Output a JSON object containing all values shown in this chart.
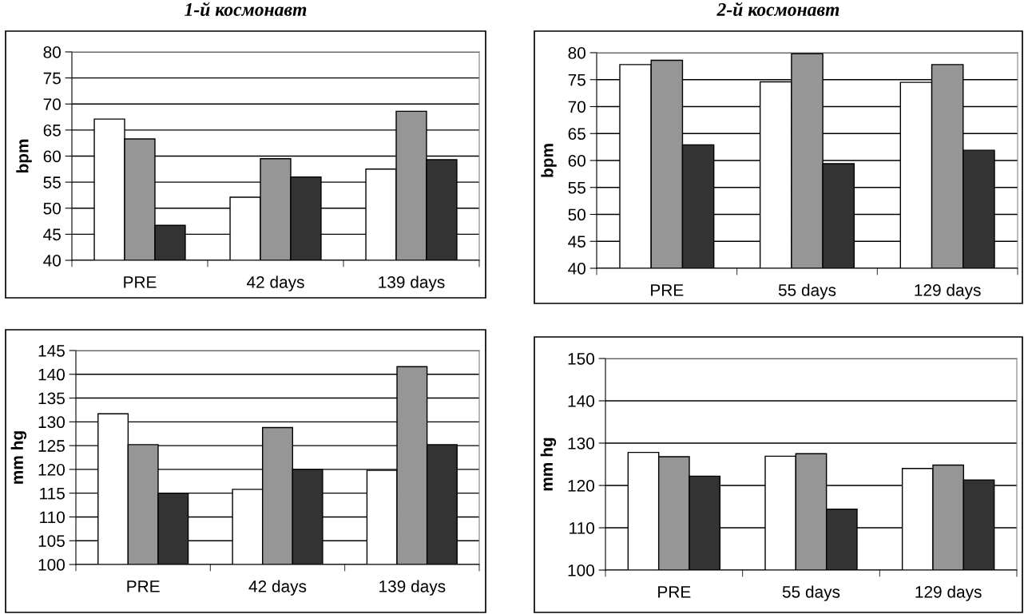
{
  "chart_data": [
    {
      "type": "bar",
      "title": "1-й космонавт",
      "ylabel": "bpm",
      "categories": [
        "PRE",
        "42 days",
        "139 days"
      ],
      "ylim": [
        40,
        80
      ],
      "yticks": [
        40,
        45,
        50,
        55,
        60,
        65,
        70,
        75,
        80
      ],
      "grid": "y",
      "series": [
        {
          "color": "#ffffff",
          "values": [
            67.1,
            52.1,
            57.5
          ]
        },
        {
          "color": "#969696",
          "values": [
            63.3,
            59.5,
            68.6
          ]
        },
        {
          "color": "#333333",
          "values": [
            46.7,
            56.0,
            59.3
          ]
        }
      ]
    },
    {
      "type": "bar",
      "title": "2-й космонавт",
      "ylabel": "bpm",
      "categories": [
        "PRE",
        "55 days",
        "129 days"
      ],
      "ylim": [
        40,
        80
      ],
      "yticks": [
        40,
        45,
        50,
        55,
        60,
        65,
        70,
        75,
        80
      ],
      "grid": "y",
      "series": [
        {
          "color": "#ffffff",
          "values": [
            77.8,
            74.6,
            74.5
          ]
        },
        {
          "color": "#969696",
          "values": [
            78.6,
            79.8,
            77.8
          ]
        },
        {
          "color": "#333333",
          "values": [
            62.9,
            59.4,
            61.9
          ]
        }
      ]
    },
    {
      "type": "bar",
      "ylabel": "mm hg",
      "categories": [
        "PRE",
        "42 days",
        "139 days"
      ],
      "ylim": [
        100,
        145
      ],
      "yticks": [
        100,
        105,
        110,
        115,
        120,
        125,
        130,
        135,
        140,
        145
      ],
      "grid": "y",
      "series": [
        {
          "color": "#ffffff",
          "values": [
            131.7,
            115.8,
            119.8
          ]
        },
        {
          "color": "#969696",
          "values": [
            125.2,
            128.8,
            141.6
          ]
        },
        {
          "color": "#333333",
          "values": [
            115.0,
            120.0,
            125.2
          ]
        }
      ]
    },
    {
      "type": "bar",
      "ylabel": "mm hg",
      "categories": [
        "PRE",
        "55 days",
        "129 days"
      ],
      "ylim": [
        100,
        150
      ],
      "yticks": [
        100,
        110,
        120,
        130,
        140,
        150
      ],
      "grid": "y",
      "series": [
        {
          "color": "#ffffff",
          "values": [
            127.8,
            126.9,
            124.0
          ]
        },
        {
          "color": "#969696",
          "values": [
            126.8,
            127.5,
            124.8
          ]
        },
        {
          "color": "#333333",
          "values": [
            122.2,
            114.4,
            121.3
          ]
        }
      ]
    }
  ]
}
